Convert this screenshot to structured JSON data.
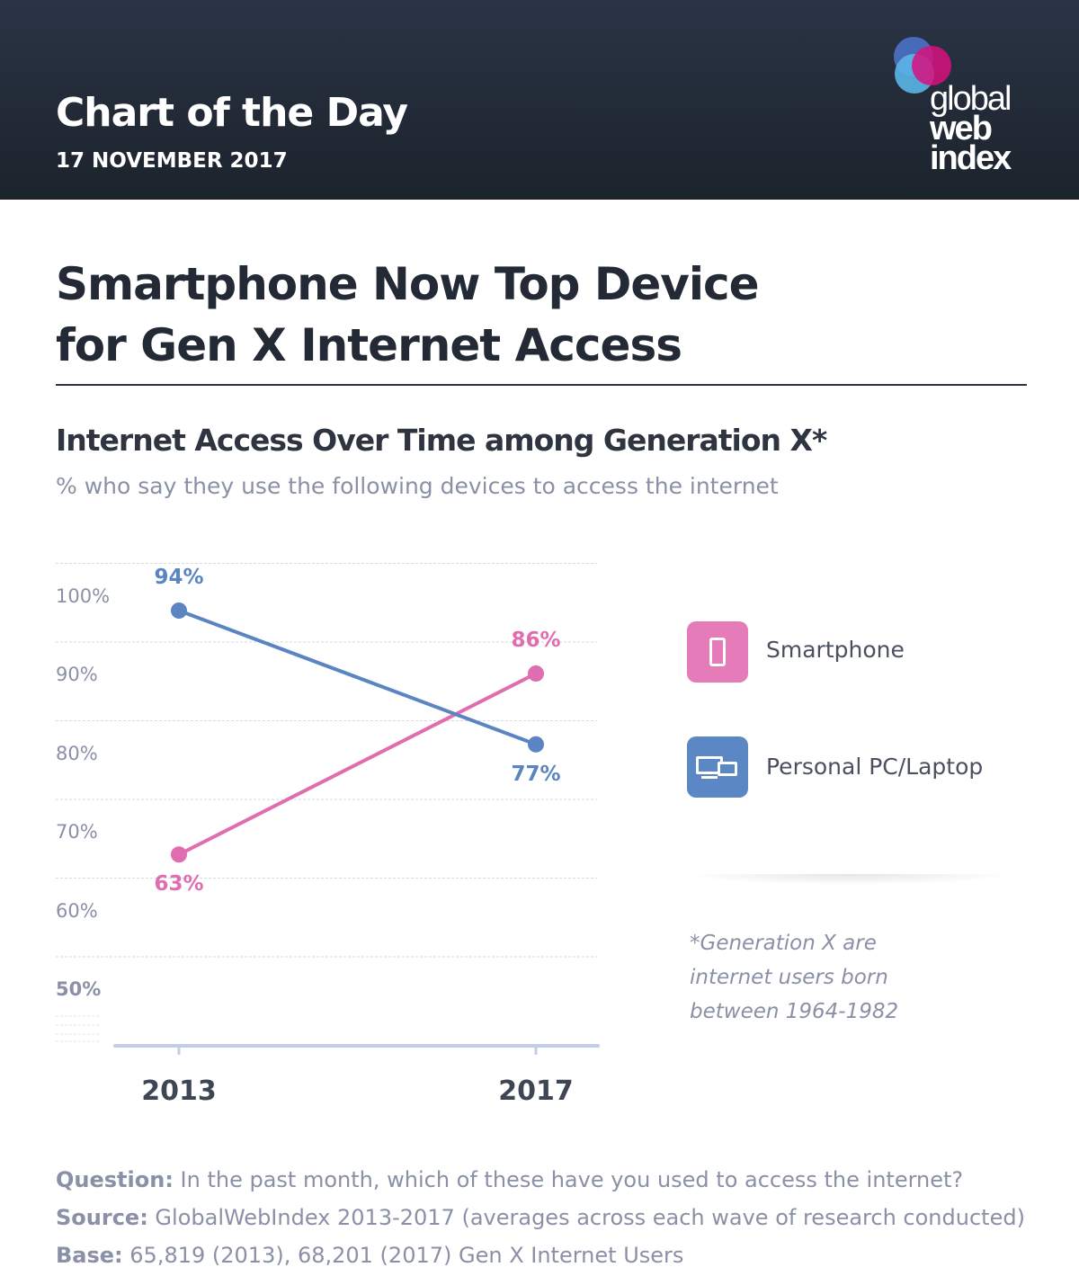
{
  "header": {
    "title": "Chart of the Day",
    "date": "17 NOVEMBER 2017",
    "logo_text": [
      "global",
      "web",
      "index"
    ]
  },
  "title_line1": "Smartphone Now Top Device",
  "title_line2": "for Gen X Internet Access",
  "chart_data": {
    "type": "line",
    "title": "Internet Access Over Time among Generation X*",
    "subtitle": "% who say they use the following devices to access the internet",
    "categories": [
      "2013",
      "2017"
    ],
    "y_ticks": [
      "100%",
      "90%",
      "80%",
      "70%",
      "60%",
      "50%"
    ],
    "ylim": [
      50,
      100
    ],
    "grid": true,
    "legend_position": "right",
    "series": [
      {
        "name": "Smartphone",
        "values": [
          63,
          86
        ],
        "labels": [
          "63%",
          "86%"
        ],
        "color": "#e06db0"
      },
      {
        "name": "Personal PC/Laptop",
        "values": [
          94,
          77
        ],
        "labels": [
          "94%",
          "77%"
        ],
        "color": "#5b85c2"
      }
    ]
  },
  "legend": [
    {
      "label": "Smartphone",
      "icon": "smartphone-icon",
      "color": "#e57bb8"
    },
    {
      "label": "Personal PC/Laptop",
      "icon": "desktop-laptop-icon",
      "color": "#5b87c5"
    }
  ],
  "note": "*Generation X are internet users born between 1964-1982",
  "footer": {
    "question_label": "Question:",
    "question": " In the past month, which of these have you used to access the internet?",
    "source_label": "Source:",
    "source": " GlobalWebIndex 2013-2017 (averages across each wave of research conducted)",
    "base_label": "Base:",
    "base": " 65,819 (2013), 68,201 (2017) Gen X Internet Users"
  }
}
